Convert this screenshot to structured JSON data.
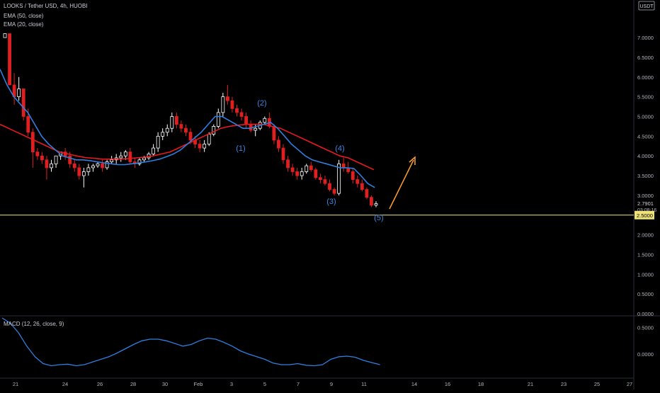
{
  "header": {
    "title": "LOOKS / Tether USD, 4h, HUOBI",
    "ema50_label": "EMA (50, close)",
    "ema20_label": "EMA (20, close)",
    "macd_label": "MACD (12, 26, close, 9)",
    "currency_badge": "USDT"
  },
  "price_tag": {
    "value": "2.7901",
    "countdown": "03:08:16"
  },
  "hline_tag": {
    "value": "2.5000"
  },
  "colors": {
    "background": "#000000",
    "up_candle": "#ffffff",
    "down_candle": "#e02020",
    "ema50": "#e8191f",
    "ema20": "#2f7fe0",
    "macd": "#2f7fe0",
    "hline": "#ede27b",
    "arrow": "#ff9f2e",
    "wave_label": "#3d86e0",
    "axis_text": "#b2b5be"
  },
  "chart_data": {
    "type": "candlestick",
    "title": "LOOKS / Tether USD, 4h, HUOBI",
    "ylim": [
      0,
      7.8
    ],
    "y_ticks": [
      "7.0000",
      "6.5000",
      "6.0000",
      "5.5000",
      "5.0000",
      "4.5000",
      "4.0000",
      "3.5000",
      "3.0000",
      "2.5000",
      "2.0000",
      "1.5000",
      "1.0000",
      "0.5000",
      "0.0000"
    ],
    "x_ticks": [
      "21",
      "24",
      "26",
      "28",
      "30",
      "Feb",
      "3",
      "5",
      "7",
      "9",
      "11",
      "14",
      "16",
      "18",
      "21",
      "23",
      "25",
      "27"
    ],
    "candles": [
      [
        7.0,
        7.1,
        7.0,
        7.1
      ],
      [
        7.1,
        7.1,
        5.8,
        5.8
      ],
      [
        5.8,
        6.1,
        5.3,
        5.5
      ],
      [
        5.5,
        6.0,
        5.4,
        5.7
      ],
      [
        5.7,
        5.7,
        4.9,
        5.0
      ],
      [
        5.0,
        5.2,
        4.5,
        4.6
      ],
      [
        4.6,
        4.7,
        3.7,
        4.1
      ],
      [
        4.1,
        4.2,
        3.9,
        4.0
      ],
      [
        4.0,
        4.1,
        3.8,
        3.9
      ],
      [
        3.9,
        4.0,
        3.4,
        3.7
      ],
      [
        3.7,
        3.9,
        3.6,
        3.8
      ],
      [
        3.8,
        4.0,
        3.7,
        4.0
      ],
      [
        4.0,
        4.1,
        3.9,
        4.1
      ],
      [
        4.1,
        4.2,
        3.9,
        4.0
      ],
      [
        4.0,
        4.1,
        3.7,
        3.8
      ],
      [
        3.8,
        3.9,
        3.6,
        3.7
      ],
      [
        3.7,
        3.8,
        3.4,
        3.5
      ],
      [
        3.5,
        3.7,
        3.2,
        3.6
      ],
      [
        3.6,
        3.8,
        3.5,
        3.7
      ],
      [
        3.7,
        3.8,
        3.6,
        3.75
      ],
      [
        3.75,
        3.85,
        3.7,
        3.8
      ],
      [
        3.8,
        3.9,
        3.6,
        3.7
      ],
      [
        3.7,
        3.9,
        3.65,
        3.85
      ],
      [
        3.85,
        4.0,
        3.8,
        3.9
      ],
      [
        3.9,
        4.05,
        3.8,
        3.95
      ],
      [
        3.95,
        4.1,
        3.85,
        4.0
      ],
      [
        4.0,
        4.15,
        3.9,
        4.1
      ],
      [
        4.1,
        4.2,
        3.8,
        3.85
      ],
      [
        3.85,
        3.95,
        3.7,
        3.8
      ],
      [
        3.8,
        3.95,
        3.75,
        3.9
      ],
      [
        3.9,
        4.0,
        3.85,
        3.95
      ],
      [
        3.95,
        4.1,
        3.9,
        4.05
      ],
      [
        4.05,
        4.3,
        4.0,
        4.2
      ],
      [
        4.2,
        4.6,
        4.1,
        4.5
      ],
      [
        4.5,
        4.7,
        4.4,
        4.6
      ],
      [
        4.6,
        4.8,
        4.5,
        4.7
      ],
      [
        4.7,
        5.1,
        4.6,
        5.0
      ],
      [
        5.0,
        5.1,
        4.7,
        4.8
      ],
      [
        4.8,
        4.9,
        4.6,
        4.7
      ],
      [
        4.7,
        4.8,
        4.5,
        4.6
      ],
      [
        4.6,
        4.7,
        4.3,
        4.4
      ],
      [
        4.4,
        4.5,
        4.2,
        4.3
      ],
      [
        4.3,
        4.4,
        4.1,
        4.2
      ],
      [
        4.2,
        4.4,
        4.1,
        4.3
      ],
      [
        4.3,
        4.6,
        4.25,
        4.55
      ],
      [
        4.55,
        4.8,
        4.5,
        4.75
      ],
      [
        4.75,
        5.2,
        4.7,
        5.1
      ],
      [
        5.1,
        5.6,
        5.0,
        5.5
      ],
      [
        5.5,
        5.8,
        5.3,
        5.4
      ],
      [
        5.4,
        5.5,
        5.1,
        5.2
      ],
      [
        5.2,
        5.3,
        5.0,
        5.1
      ],
      [
        5.1,
        5.2,
        4.9,
        5.0
      ],
      [
        5.0,
        5.1,
        4.7,
        4.8
      ],
      [
        4.8,
        4.9,
        4.6,
        4.65
      ],
      [
        4.65,
        4.8,
        4.5,
        4.7
      ],
      [
        4.7,
        4.9,
        4.65,
        4.85
      ],
      [
        4.85,
        5.0,
        4.8,
        4.95
      ],
      [
        4.95,
        5.1,
        4.7,
        4.75
      ],
      [
        4.75,
        4.8,
        4.3,
        4.4
      ],
      [
        4.4,
        4.5,
        4.1,
        4.2
      ],
      [
        4.2,
        4.3,
        3.8,
        3.9
      ],
      [
        3.9,
        4.0,
        3.6,
        3.7
      ],
      [
        3.7,
        3.8,
        3.5,
        3.6
      ],
      [
        3.6,
        3.7,
        3.4,
        3.5
      ],
      [
        3.5,
        3.7,
        3.4,
        3.6
      ],
      [
        3.6,
        3.8,
        3.55,
        3.75
      ],
      [
        3.75,
        3.85,
        3.6,
        3.65
      ],
      [
        3.65,
        3.7,
        3.4,
        3.45
      ],
      [
        3.45,
        3.55,
        3.3,
        3.4
      ],
      [
        3.4,
        3.5,
        3.25,
        3.3
      ],
      [
        3.3,
        3.4,
        3.1,
        3.15
      ],
      [
        3.15,
        3.2,
        3.0,
        3.05
      ],
      [
        3.05,
        3.9,
        3.0,
        3.8
      ],
      [
        3.8,
        3.95,
        3.6,
        3.7
      ],
      [
        3.7,
        3.85,
        3.55,
        3.6
      ],
      [
        3.6,
        3.7,
        3.3,
        3.4
      ],
      [
        3.4,
        3.5,
        3.2,
        3.3
      ],
      [
        3.3,
        3.4,
        3.1,
        3.15
      ],
      [
        3.15,
        3.2,
        2.9,
        2.95
      ],
      [
        2.95,
        3.0,
        2.7,
        2.75
      ],
      [
        2.75,
        2.85,
        2.7,
        2.79
      ]
    ],
    "ema20": [
      6.2,
      5.8,
      5.5,
      5.3,
      5.1,
      4.8,
      4.5,
      4.3,
      4.15,
      4.0,
      3.95,
      3.9,
      3.9,
      3.88,
      3.85,
      3.82,
      3.8,
      3.78,
      3.78,
      3.8,
      3.82,
      3.85,
      3.88,
      3.92,
      3.98,
      4.05,
      4.15,
      4.3,
      4.45,
      4.6,
      4.8,
      5.0,
      5.0,
      4.9,
      4.8,
      4.7,
      4.7,
      4.75,
      4.8,
      4.85,
      4.7,
      4.5,
      4.3,
      4.15,
      4.0,
      3.9,
      3.85,
      3.8,
      3.75,
      3.7,
      3.7,
      3.68,
      3.5,
      3.3,
      3.2
    ],
    "ema50": [
      4.8,
      4.7,
      4.6,
      4.5,
      4.4,
      4.3,
      4.2,
      4.1,
      4.05,
      4.0,
      3.96,
      3.94,
      3.92,
      3.92,
      3.92,
      3.93,
      3.95,
      3.97,
      4.0,
      4.05,
      4.1,
      4.2,
      4.3,
      4.4,
      4.5,
      4.6,
      4.7,
      4.75,
      4.78,
      4.8,
      4.8,
      4.8,
      4.75,
      4.7,
      4.6,
      4.5,
      4.4,
      4.3,
      4.2,
      4.1,
      4.0,
      3.95,
      3.85,
      3.75,
      3.65
    ],
    "macd": {
      "name": "MACD (12, 26, close, 9)",
      "ylim": [
        -0.35,
        0.72
      ],
      "y_ticks": [
        "0.5000",
        "0.0000"
      ],
      "values": [
        0.68,
        0.58,
        0.4,
        0.15,
        -0.05,
        -0.18,
        -0.22,
        -0.2,
        -0.19,
        -0.22,
        -0.2,
        -0.15,
        -0.1,
        -0.05,
        0.02,
        0.1,
        0.18,
        0.25,
        0.28,
        0.28,
        0.25,
        0.2,
        0.15,
        0.18,
        0.25,
        0.3,
        0.28,
        0.22,
        0.15,
        0.06,
        0.0,
        -0.05,
        -0.1,
        -0.17,
        -0.2,
        -0.2,
        -0.18,
        -0.21,
        -0.22,
        -0.2,
        -0.1,
        -0.05,
        -0.04,
        -0.06,
        -0.12,
        -0.16,
        -0.2
      ]
    },
    "annotations": [
      "(1)",
      "(2)",
      "(3)",
      "(4)",
      "(5)"
    ],
    "hline": 2.5,
    "grid": false
  }
}
